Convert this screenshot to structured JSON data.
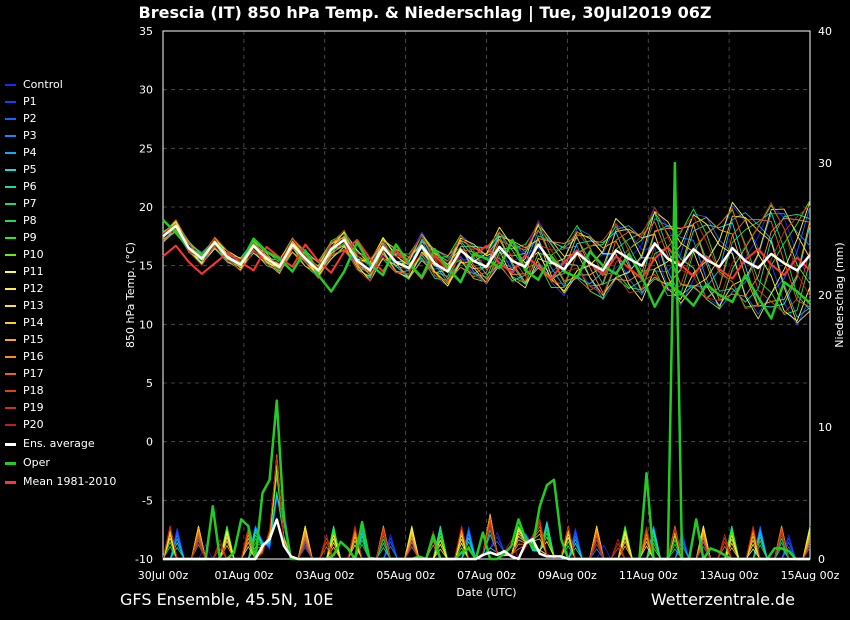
{
  "header": {
    "title": "Brescia  (IT)  850 hPa Temp. & Niederschlag | Tue, 30Jul2019 06Z"
  },
  "footer": {
    "left": "GFS Ensemble, 45.5N, 10E",
    "right": "Wetterzentrale.de"
  },
  "chart_data": {
    "type": "line",
    "xlabel": "Date (UTC)",
    "ylabel": "850 hPa Temp. (°C)",
    "y2label": "Niederschlag (mm)",
    "ylim": [
      -10,
      35
    ],
    "y2lim": [
      0,
      40
    ],
    "yticks": [
      35,
      30,
      25,
      20,
      15,
      10,
      5,
      0,
      -5,
      -10
    ],
    "y2ticks": [
      40,
      30,
      20,
      10,
      0
    ],
    "x_tick_labels": [
      "30Jul 00z",
      "01Aug 00z",
      "03Aug 00z",
      "05Aug 00z",
      "07Aug 00z",
      "09Aug 00z",
      "11Aug 00z",
      "13Aug 00z",
      "15Aug 00z"
    ],
    "grid": true,
    "legend_placement": "left",
    "x_hours": [
      6,
      390
    ],
    "temp": {
      "oper": [
        18.9,
        17.8,
        16.5,
        15.9,
        17.0,
        15.6,
        15.2,
        17.3,
        16.2,
        15.6,
        14.5,
        16.3,
        14.2,
        12.8,
        14.5,
        17.0,
        15.1,
        14.2,
        16.8,
        15.2,
        14.0,
        16.4,
        14.8,
        13.6,
        16.0,
        15.6,
        14.8,
        17.2,
        14.6,
        13.8,
        15.8,
        14.5,
        14.0,
        16.2,
        15.0,
        14.3,
        16.0,
        14.1,
        11.5,
        13.5,
        12.7,
        11.6,
        13.4,
        12.5,
        11.9,
        14.2,
        12.3,
        10.5,
        13.6,
        12.8,
        11.8
      ],
      "mean": [
        15.8,
        16.7,
        15.3,
        14.3,
        15.2,
        16.1,
        15.3,
        14.6,
        16.6,
        15.7,
        14.9,
        16.8,
        15.4,
        14.4,
        16.2,
        17.2,
        15.6,
        14.5,
        16.3,
        15.1,
        13.9,
        15.9,
        14.7,
        13.6,
        15.8,
        16.7,
        15.2,
        14.4,
        15.9,
        14.9,
        13.9,
        15.3,
        16.3,
        15.2,
        14.2,
        15.8,
        14.8,
        13.9,
        15.6,
        16.6,
        15.1,
        14.1,
        15.8,
        14.7,
        13.9,
        15.5,
        16.4,
        15.1,
        14.2,
        15.7,
        14.6
      ],
      "ens_average": [
        17.5,
        18.4,
        16.5,
        15.6,
        17.0,
        15.7,
        15.1,
        16.7,
        15.6,
        14.9,
        16.8,
        15.6,
        14.6,
        16.4,
        17.2,
        15.4,
        14.6,
        16.6,
        15.3,
        14.8,
        16.7,
        15.2,
        14.5,
        16.3,
        15.4,
        14.9,
        16.6,
        15.4,
        14.9,
        16.8,
        15.3,
        14.7,
        16.1,
        15.2,
        14.6,
        16.3,
        15.6,
        15.0,
        16.9,
        15.6,
        15.0,
        16.4,
        15.5,
        14.9,
        16.5,
        15.4,
        14.8,
        16.0,
        15.2,
        14.6,
        15.9
      ]
    },
    "precip": {
      "oper": [
        0,
        0,
        0,
        0,
        0,
        0,
        0,
        4,
        0,
        0,
        0.5,
        3,
        2.5,
        0,
        5,
        6,
        12,
        3,
        0,
        0,
        0,
        0,
        0,
        0,
        0.3,
        1.3,
        0.8,
        0,
        2.8,
        0.1,
        0,
        0,
        0,
        0,
        0,
        0,
        0.2,
        0,
        1.8,
        0,
        0,
        0,
        0.5,
        0.8,
        0,
        2,
        0,
        0,
        0.4,
        1,
        3,
        1.5,
        1,
        4,
        5.6,
        6,
        1.5,
        0,
        0,
        0,
        0,
        0,
        0,
        0,
        0,
        0,
        0,
        0,
        6.5,
        0,
        0,
        0,
        30,
        0,
        0,
        3,
        0,
        0.8,
        0.6,
        0.3,
        0,
        0,
        0,
        0,
        0,
        0,
        0.8,
        0.8,
        0.6,
        0,
        0,
        0
      ],
      "ens_average": [
        0,
        0,
        0,
        0,
        0,
        0,
        0,
        0,
        0,
        0,
        0,
        0,
        0,
        0,
        1,
        1.5,
        3,
        1,
        0.2,
        0,
        0,
        0,
        0,
        0,
        0,
        0,
        0,
        0,
        0,
        0,
        0,
        0,
        0,
        0,
        0,
        0,
        0,
        0,
        0,
        0,
        0,
        0,
        0,
        0,
        0,
        0.3,
        0.5,
        0.3,
        0.6,
        0.2,
        0,
        1.2,
        1.5,
        0.4,
        0.2,
        0.2,
        0.2,
        0,
        0,
        0,
        0,
        0,
        0,
        0,
        0,
        0,
        0,
        0,
        0,
        0,
        0,
        0,
        0,
        0,
        0,
        0,
        0,
        0,
        0,
        0,
        0,
        0,
        0,
        0,
        0,
        0,
        0,
        0,
        0,
        0,
        0,
        0
      ]
    }
  },
  "legend": {
    "items": [
      {
        "label": "Control",
        "color": "#2222ff"
      },
      {
        "label": "P1",
        "color": "#1144ff"
      },
      {
        "label": "P2",
        "color": "#1166ff"
      },
      {
        "label": "P3",
        "color": "#1188ff"
      },
      {
        "label": "P4",
        "color": "#11aaff"
      },
      {
        "label": "P5",
        "color": "#11dddd"
      },
      {
        "label": "P6",
        "color": "#11ddaa"
      },
      {
        "label": "P7",
        "color": "#11dd77"
      },
      {
        "label": "P8",
        "color": "#22dd44"
      },
      {
        "label": "P9",
        "color": "#22ee22"
      },
      {
        "label": "P10",
        "color": "#66ee11"
      },
      {
        "label": "P11",
        "color": "#ffff22"
      },
      {
        "label": "P12",
        "color": "#ffee44"
      },
      {
        "label": "P13",
        "color": "#ffdd33"
      },
      {
        "label": "P14",
        "color": "#ffcc22"
      },
      {
        "label": "P15",
        "color": "#ffaa11"
      },
      {
        "label": "P16",
        "color": "#ff8822"
      },
      {
        "label": "P17",
        "color": "#ee6611"
      },
      {
        "label": "P18",
        "color": "#dd4411"
      },
      {
        "label": "P19",
        "color": "#cc3311"
      },
      {
        "label": "P20",
        "color": "#bb2211"
      },
      {
        "label": "Ens. average",
        "color": "#ffffff"
      },
      {
        "label": "Oper",
        "color": "#22cc22"
      },
      {
        "label": "Mean 1981-2010",
        "color": "#ff3333"
      }
    ]
  }
}
